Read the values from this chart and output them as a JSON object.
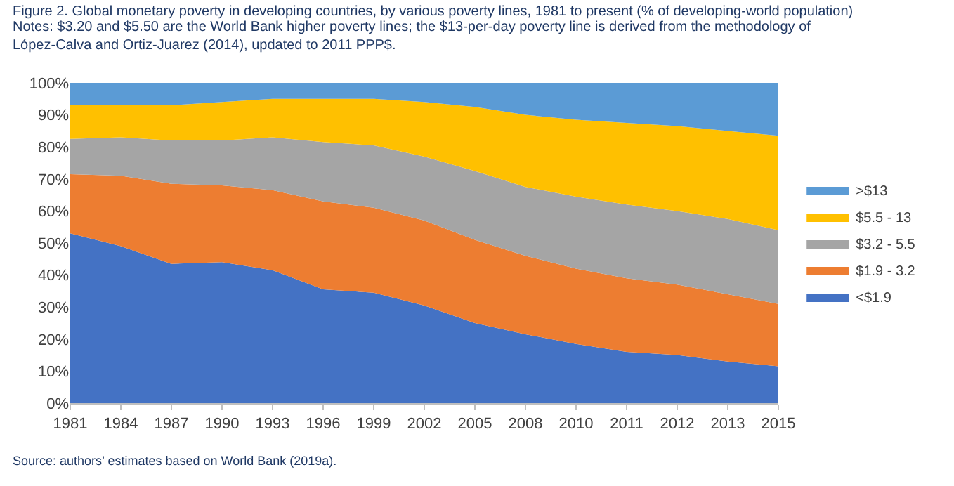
{
  "chart_data": {
    "type": "area",
    "stacked": true,
    "title": "Figure 2. Global monetary poverty in developing countries, by various poverty lines, 1981 to present (% of developing-world population)",
    "annotations": [
      "Notes: $3.20 and $5.50 are the World Bank higher poverty lines; the $13-per-day poverty line is derived from the methodology of López-Calva and Ortiz-Juarez (2014), updated to 2011 PPP$.",
      "Source: authors’ estimates based on World Bank (2019a)."
    ],
    "categories": [
      "1981",
      "1984",
      "1987",
      "1990",
      "1993",
      "1996",
      "1999",
      "2002",
      "2005",
      "2008",
      "2010",
      "2011",
      "2012",
      "2013",
      "2015"
    ],
    "series": [
      {
        "name": "<$1.9",
        "color": "#4472c4",
        "values": [
          53,
          49,
          43.5,
          44,
          41.5,
          35.5,
          34.5,
          30.5,
          25,
          21.5,
          18.5,
          16,
          15,
          13,
          11.5
        ]
      },
      {
        "name": "$1.9 - 3.2",
        "color": "#ed7d31",
        "values": [
          18.5,
          22,
          25,
          24,
          25,
          27.5,
          26.5,
          26.5,
          26,
          24.5,
          23.5,
          23,
          22,
          21,
          19.5
        ]
      },
      {
        "name": "$3.2 - 5.5",
        "color": "#a5a5a5",
        "values": [
          11,
          12,
          13.5,
          14,
          16.5,
          18.5,
          19.5,
          20,
          21.5,
          21.5,
          22.5,
          23,
          23,
          23.5,
          23
        ]
      },
      {
        "name": "$5.5 - 13",
        "color": "#ffc000",
        "values": [
          10.5,
          10,
          11,
          12,
          12,
          13.5,
          14.5,
          17,
          20,
          22.5,
          24,
          25.5,
          26.5,
          27.5,
          29.5
        ]
      },
      {
        "name": ">$13",
        "color": "#5b9bd5",
        "values": [
          7,
          7,
          7,
          6,
          5,
          5,
          5,
          6,
          7.5,
          10,
          11.5,
          12.5,
          13.5,
          15,
          16.5
        ]
      }
    ],
    "ylim": [
      0,
      100
    ],
    "yticks": [
      {
        "value": 0,
        "label": "0%"
      },
      {
        "value": 10,
        "label": "10%"
      },
      {
        "value": 20,
        "label": "20%"
      },
      {
        "value": 30,
        "label": "30%"
      },
      {
        "value": 40,
        "label": "40%"
      },
      {
        "value": 50,
        "label": "50%"
      },
      {
        "value": 60,
        "label": "60%"
      },
      {
        "value": 70,
        "label": "70%"
      },
      {
        "value": 80,
        "label": "80%"
      },
      {
        "value": 90,
        "label": "90%"
      },
      {
        "value": 100,
        "label": "100%"
      }
    ],
    "legend": "right"
  }
}
